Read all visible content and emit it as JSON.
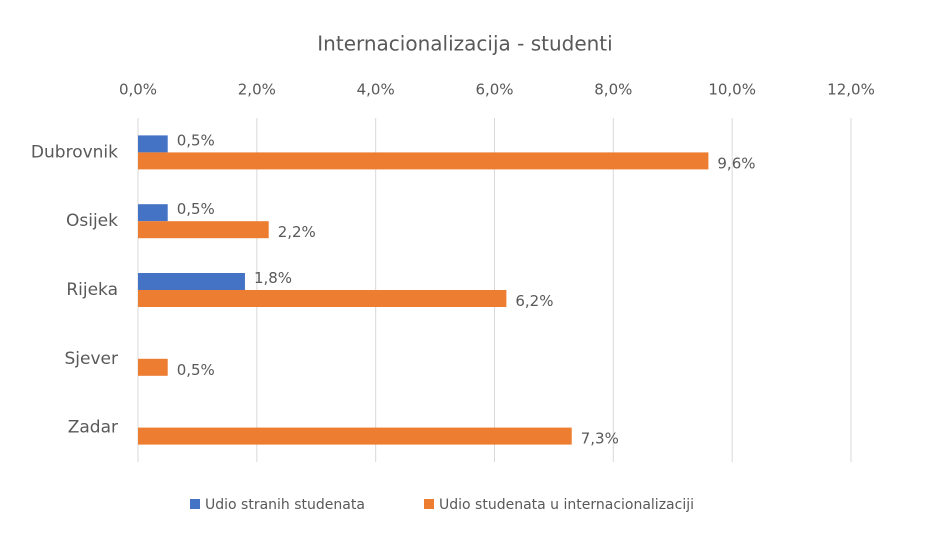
{
  "chart_data": {
    "type": "hbar",
    "title": "Internacionalizacija - studenti",
    "categories": [
      "Dubrovnik",
      "Osijek",
      "Rijeka",
      "Sjever",
      "Zadar"
    ],
    "series": [
      {
        "name": "Udio stranih studenata",
        "color": "#4472c4",
        "values": [
          0.5,
          0.5,
          1.8,
          null,
          null
        ],
        "value_labels": [
          "0,5%",
          "0,5%",
          "1,8%",
          null,
          null
        ]
      },
      {
        "name": "Udio studenata u internacionalizaciji",
        "color": "#ed7d31",
        "values": [
          9.6,
          2.2,
          6.2,
          0.5,
          7.3
        ],
        "value_labels": [
          "9,6%",
          "2,2%",
          "6,2%",
          "0,5%",
          "7,3%"
        ]
      }
    ],
    "xlim": [
      0,
      12
    ],
    "xticks": [
      {
        "value": 0,
        "label": "0,0%"
      },
      {
        "value": 2,
        "label": "2,0%"
      },
      {
        "value": 4,
        "label": "4,0%"
      },
      {
        "value": 6,
        "label": "6,0%"
      },
      {
        "value": 8,
        "label": "8,0%"
      },
      {
        "value": 10,
        "label": "10,0%"
      },
      {
        "value": 12,
        "label": "12,0%"
      }
    ],
    "grid": true,
    "legend": "bottom"
  }
}
